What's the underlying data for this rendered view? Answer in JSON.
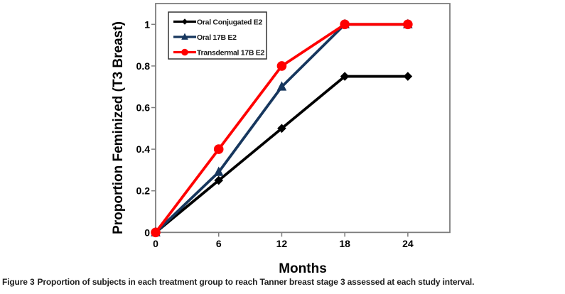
{
  "figure": {
    "caption_label": "Figure 3",
    "caption_text": "Proportion of subjects in each treatment group to reach Tanner breast stage 3 assessed at each study interval."
  },
  "chart_data": {
    "type": "line",
    "title": "",
    "xlabel": "Months",
    "ylabel": "Proportion Feminized (T3 Breast)",
    "x": [
      0,
      6,
      12,
      18,
      24
    ],
    "xticks": [
      0,
      6,
      12,
      18,
      24
    ],
    "yticks": [
      0,
      0.2,
      0.4,
      0.6,
      0.8,
      1
    ],
    "xlim": [
      0,
      28
    ],
    "ylim": [
      0,
      1.1
    ],
    "grid": false,
    "legend_position": "top-left-inside",
    "axis_color": "#7d7d7d",
    "series": [
      {
        "name": "Oral Conjugated E2",
        "color": "#000000",
        "marker": "diamond",
        "values": [
          0,
          0.25,
          0.5,
          0.75,
          0.75
        ]
      },
      {
        "name": "Oral 17B E2",
        "color": "#17375E",
        "marker": "triangle",
        "values": [
          0,
          0.29,
          0.7,
          1.0,
          1.0
        ]
      },
      {
        "name": "Transdermal 17B E2",
        "color": "#FF0000",
        "marker": "circle",
        "values": [
          0,
          0.4,
          0.8,
          1.0,
          1.0
        ]
      }
    ]
  }
}
